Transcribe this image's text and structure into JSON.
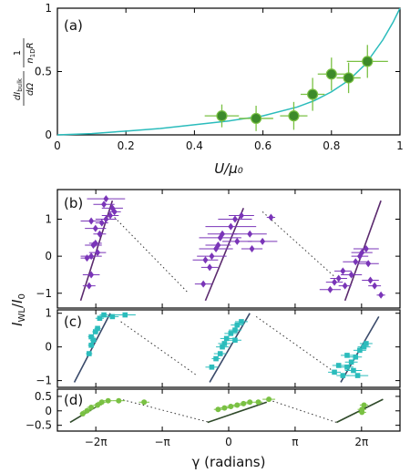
{
  "figure": {
    "background": "#ffffff"
  },
  "chart_data": [
    {
      "id": "a",
      "type": "scatter",
      "panel_label": "(a)",
      "xlabel": "U/μ₀",
      "ylabel_parts": {
        "frac1_num": "dI",
        "frac1_sub": "bulk",
        "frac1_den": "dΩ",
        "frac2_num": "1",
        "frac2_den": "n",
        "frac2_den_sub": "1D",
        "frac2_den_tail": "R"
      },
      "xlim": [
        0,
        1
      ],
      "ylim": [
        0,
        1
      ],
      "xticks": [
        0,
        0.2,
        0.4,
        0.6,
        0.8,
        1
      ],
      "xtick_labels": [
        "0",
        "0.2",
        "0.4",
        "0.6",
        "0.8",
        "1"
      ],
      "yticks": [
        0,
        0.5,
        1
      ],
      "ytick_labels": [
        "0",
        "0.5",
        "1"
      ],
      "point_color": "#3d8a2a",
      "errorbar_color": "#7ac143",
      "curve_color": "#2bbcbc",
      "curve": {
        "x": [
          0,
          0.1,
          0.2,
          0.3,
          0.4,
          0.5,
          0.6,
          0.7,
          0.75,
          0.8,
          0.85,
          0.9,
          0.95,
          0.98,
          1.0
        ],
        "y": [
          0,
          0.01,
          0.03,
          0.05,
          0.08,
          0.11,
          0.15,
          0.22,
          0.27,
          0.34,
          0.43,
          0.56,
          0.75,
          0.89,
          1.0
        ]
      },
      "points": [
        {
          "x": 0.48,
          "y": 0.15,
          "xerr": 0.05,
          "yerr": 0.09
        },
        {
          "x": 0.58,
          "y": 0.13,
          "xerr": 0.05,
          "yerr": 0.1
        },
        {
          "x": 0.69,
          "y": 0.15,
          "xerr": 0.04,
          "yerr": 0.11
        },
        {
          "x": 0.745,
          "y": 0.32,
          "xerr": 0.035,
          "yerr": 0.13
        },
        {
          "x": 0.8,
          "y": 0.48,
          "xerr": 0.04,
          "yerr": 0.13
        },
        {
          "x": 0.85,
          "y": 0.45,
          "xerr": 0.035,
          "yerr": 0.12
        },
        {
          "x": 0.905,
          "y": 0.58,
          "xerr": 0.06,
          "yerr": 0.13
        }
      ]
    },
    {
      "id": "b",
      "type": "scatter",
      "panel_label": "(b)",
      "xlim": [
        -8.1,
        8.1
      ],
      "ylim": [
        -1.4,
        1.8
      ],
      "yticks": [
        -1,
        0,
        1
      ],
      "ytick_labels": [
        "−1",
        "0",
        "1"
      ],
      "point_color": "#7a35b8",
      "line_color": "#5b2a6e",
      "points": [
        {
          "x": -6.6,
          "y": -0.8,
          "xerr": 0.3
        },
        {
          "x": -6.5,
          "y": -0.5,
          "xerr": 0.4
        },
        {
          "x": -6.7,
          "y": -0.05,
          "xerr": 0.3
        },
        {
          "x": -6.5,
          "y": 0.0,
          "xerr": 0.5
        },
        {
          "x": -6.4,
          "y": 0.3,
          "xerr": 0.4
        },
        {
          "x": -6.3,
          "y": 0.35,
          "xerr": 0.3
        },
        {
          "x": -6.2,
          "y": 0.1,
          "xerr": 0.4
        },
        {
          "x": -6.1,
          "y": 0.6,
          "xerr": 0.3
        },
        {
          "x": -6.3,
          "y": 0.75,
          "xerr": 0.5
        },
        {
          "x": -6.5,
          "y": 0.95,
          "xerr": 0.5
        },
        {
          "x": -6.0,
          "y": 0.9,
          "xerr": 0.3
        },
        {
          "x": -5.8,
          "y": 1.0,
          "xerr": 0.5
        },
        {
          "x": -5.6,
          "y": 1.1,
          "xerr": 0.4
        },
        {
          "x": -5.5,
          "y": 1.3,
          "xerr": 0.5
        },
        {
          "x": -5.4,
          "y": 1.2,
          "xerr": 0.3
        },
        {
          "x": -5.8,
          "y": 1.55,
          "xerr": 0.9
        },
        {
          "x": -5.9,
          "y": 1.4,
          "xerr": 0.5
        },
        {
          "x": -1.2,
          "y": -0.75,
          "xerr": 0.4
        },
        {
          "x": -1.1,
          "y": -0.1,
          "xerr": 0.6
        },
        {
          "x": -0.9,
          "y": -0.3,
          "xerr": 0.4
        },
        {
          "x": -0.8,
          "y": 0.0,
          "xerr": 0.7
        },
        {
          "x": -0.6,
          "y": 0.2,
          "xerr": 0.8
        },
        {
          "x": -0.5,
          "y": 0.3,
          "xerr": 0.6
        },
        {
          "x": -0.4,
          "y": 0.5,
          "xerr": 1.0
        },
        {
          "x": -0.3,
          "y": 0.6,
          "xerr": 0.7
        },
        {
          "x": 0.1,
          "y": 0.8,
          "xerr": 1.2
        },
        {
          "x": 0.3,
          "y": 1.0,
          "xerr": 0.8
        },
        {
          "x": 0.6,
          "y": 1.1,
          "xerr": 0.6
        },
        {
          "x": 0.4,
          "y": 0.4,
          "xerr": 0.7
        },
        {
          "x": 1.0,
          "y": 0.6,
          "xerr": 0.8
        },
        {
          "x": 1.6,
          "y": 0.4,
          "xerr": 0.7
        },
        {
          "x": 2.0,
          "y": 1.05,
          "xerr": 0.2
        },
        {
          "x": 1.1,
          "y": 0.2,
          "xerr": 0.5
        },
        {
          "x": 4.8,
          "y": -0.9,
          "xerr": 0.5
        },
        {
          "x": 5.0,
          "y": -0.7,
          "xerr": 0.4
        },
        {
          "x": 5.2,
          "y": -0.6,
          "xerr": 0.4
        },
        {
          "x": 5.4,
          "y": -0.4,
          "xerr": 0.4
        },
        {
          "x": 5.5,
          "y": -0.8,
          "xerr": 0.3
        },
        {
          "x": 5.8,
          "y": -0.5,
          "xerr": 0.5
        },
        {
          "x": 6.0,
          "y": -0.15,
          "xerr": 0.6
        },
        {
          "x": 6.2,
          "y": 0.0,
          "xerr": 0.4
        },
        {
          "x": 6.3,
          "y": 0.1,
          "xerr": 0.5
        },
        {
          "x": 6.5,
          "y": 0.2,
          "xerr": 0.6
        },
        {
          "x": 6.6,
          "y": -0.2,
          "xerr": 0.5
        },
        {
          "x": 6.7,
          "y": -0.65,
          "xerr": 0.4
        },
        {
          "x": 6.9,
          "y": -0.8,
          "xerr": 0.3
        },
        {
          "x": 7.2,
          "y": -1.05,
          "xerr": 0.2
        }
      ],
      "lines": [
        {
          "x": [
            -7.0,
            -5.5
          ],
          "y": [
            -1.2,
            1.5
          ]
        },
        {
          "x": [
            -1.1,
            0.7
          ],
          "y": [
            -1.2,
            1.3
          ]
        },
        {
          "x": [
            5.5,
            7.2
          ],
          "y": [
            -1.2,
            1.5
          ]
        }
      ],
      "dotted": [
        {
          "x": [
            -5.4,
            -1.9
          ],
          "y": [
            1.05,
            -1.0
          ]
        },
        {
          "x": [
            1.6,
            5.0
          ],
          "y": [
            1.2,
            -0.55
          ]
        }
      ]
    },
    {
      "id": "c",
      "type": "scatter",
      "panel_label": "(c)",
      "xlim": [
        -8.1,
        8.1
      ],
      "ylim": [
        -1.2,
        1.1
      ],
      "yticks": [
        -1,
        0,
        1
      ],
      "ytick_labels": [
        "−1",
        "0",
        "1"
      ],
      "point_color": "#2bbcbc",
      "line_color": "#3a4a6a",
      "points": [
        {
          "x": -6.6,
          "y": -0.2,
          "xerr": 0.15
        },
        {
          "x": -6.5,
          "y": 0.05,
          "xerr": 0.15
        },
        {
          "x": -6.4,
          "y": 0.2,
          "xerr": 0.15
        },
        {
          "x": -6.5,
          "y": 0.3,
          "xerr": 0.15
        },
        {
          "x": -6.3,
          "y": 0.45,
          "xerr": 0.15
        },
        {
          "x": -6.2,
          "y": 0.55,
          "xerr": 0.15
        },
        {
          "x": -6.1,
          "y": 0.85,
          "xerr": 0.2
        },
        {
          "x": -5.9,
          "y": 0.95,
          "xerr": 0.2
        },
        {
          "x": -5.5,
          "y": 0.9,
          "xerr": 0.3
        },
        {
          "x": -4.9,
          "y": 0.95,
          "xerr": 0.5
        },
        {
          "x": -0.8,
          "y": -0.6,
          "xerr": 0.3
        },
        {
          "x": -0.6,
          "y": -0.35,
          "xerr": 0.2
        },
        {
          "x": -0.4,
          "y": -0.2,
          "xerr": 0.3
        },
        {
          "x": -0.3,
          "y": 0.0,
          "xerr": 0.3
        },
        {
          "x": -0.2,
          "y": 0.1,
          "xerr": 0.3
        },
        {
          "x": -0.1,
          "y": 0.25,
          "xerr": 0.3
        },
        {
          "x": 0.1,
          "y": 0.4,
          "xerr": 0.3
        },
        {
          "x": 0.3,
          "y": 0.5,
          "xerr": 0.3
        },
        {
          "x": 0.4,
          "y": 0.65,
          "xerr": 0.3
        },
        {
          "x": 0.6,
          "y": 0.75,
          "xerr": 0.3
        },
        {
          "x": 0.3,
          "y": 0.2,
          "xerr": 0.3
        },
        {
          "x": 5.0,
          "y": -0.75,
          "xerr": 0.3
        },
        {
          "x": 5.4,
          "y": -0.85,
          "xerr": 0.3
        },
        {
          "x": 5.6,
          "y": -0.6,
          "xerr": 0.3
        },
        {
          "x": 5.8,
          "y": -0.45,
          "xerr": 0.3
        },
        {
          "x": 6.0,
          "y": -0.3,
          "xerr": 0.3
        },
        {
          "x": 6.2,
          "y": -0.1,
          "xerr": 0.3
        },
        {
          "x": 6.4,
          "y": 0.0,
          "xerr": 0.3
        },
        {
          "x": 6.5,
          "y": 0.1,
          "xerr": 0.3
        },
        {
          "x": 6.1,
          "y": -0.85,
          "xerr": 0.5
        },
        {
          "x": 5.9,
          "y": -0.7,
          "xerr": 0.4
        },
        {
          "x": 5.2,
          "y": -0.55,
          "xerr": 0.3
        },
        {
          "x": 5.6,
          "y": -0.25,
          "xerr": 0.3
        }
      ],
      "lines": [
        {
          "x": [
            -7.3,
            -5.6
          ],
          "y": [
            -1.05,
            1.0
          ]
        },
        {
          "x": [
            -0.9,
            1.0
          ],
          "y": [
            -1.05,
            1.0
          ]
        },
        {
          "x": [
            5.3,
            7.1
          ],
          "y": [
            -1.05,
            0.9
          ]
        }
      ],
      "dotted": [
        {
          "x": [
            -5.1,
            -1.5
          ],
          "y": [
            0.75,
            -0.85
          ]
        },
        {
          "x": [
            1.3,
            4.9
          ],
          "y": [
            0.9,
            -0.7
          ]
        }
      ]
    },
    {
      "id": "d",
      "type": "scatter",
      "panel_label": "(d)",
      "xlabel": "γ (radians)",
      "xlim": [
        -8.1,
        8.1
      ],
      "ylim": [
        -0.7,
        0.75
      ],
      "xticks": [
        -6.2832,
        -3.1416,
        0,
        3.1416,
        6.2832
      ],
      "xtick_labels": [
        "−2π",
        "−π",
        "0",
        "π",
        "2π"
      ],
      "yticks": [
        -0.5,
        0,
        0.5
      ],
      "ytick_labels": [
        "−0.5",
        "0",
        "0.5"
      ],
      "point_color": "#7ac143",
      "line_color": "#2f4a2a",
      "points": [
        {
          "x": -6.9,
          "y": -0.1,
          "xerr": 0.15
        },
        {
          "x": -6.7,
          "y": 0.0,
          "xerr": 0.2
        },
        {
          "x": -6.5,
          "y": 0.12,
          "xerr": 0.2
        },
        {
          "x": -6.2,
          "y": 0.2,
          "xerr": 0.2
        },
        {
          "x": -6.0,
          "y": 0.3,
          "xerr": 0.2
        },
        {
          "x": -5.7,
          "y": 0.35,
          "xerr": 0.2
        },
        {
          "x": -5.2,
          "y": 0.35,
          "xerr": 0.3
        },
        {
          "x": -4.0,
          "y": 0.3,
          "xerr": 0.25
        },
        {
          "x": -0.5,
          "y": 0.05,
          "xerr": 0.2
        },
        {
          "x": -0.2,
          "y": 0.1,
          "xerr": 0.2
        },
        {
          "x": 0.1,
          "y": 0.15,
          "xerr": 0.2
        },
        {
          "x": 0.4,
          "y": 0.2,
          "xerr": 0.2
        },
        {
          "x": 0.7,
          "y": 0.25,
          "xerr": 0.2
        },
        {
          "x": 1.0,
          "y": 0.3,
          "xerr": 0.2
        },
        {
          "x": 1.4,
          "y": 0.3,
          "xerr": 0.2
        },
        {
          "x": 1.9,
          "y": 0.4,
          "xerr": 0.3
        },
        {
          "x": 6.3,
          "y": -0.05,
          "xerr": 0.2
        },
        {
          "x": 6.3,
          "y": 0.05,
          "xerr": 0.2
        },
        {
          "x": 6.4,
          "y": 0.2,
          "xerr": 0.2
        }
      ],
      "lines": [
        {
          "x": [
            -7.5,
            -5.9
          ],
          "y": [
            -0.4,
            0.3
          ]
        },
        {
          "x": [
            -1.0,
            1.8
          ],
          "y": [
            -0.4,
            0.3
          ]
        },
        {
          "x": [
            5.1,
            7.3
          ],
          "y": [
            -0.4,
            0.4
          ]
        }
      ],
      "dotted": [
        {
          "x": [
            -5.0,
            -0.9
          ],
          "y": [
            0.38,
            -0.4
          ]
        },
        {
          "x": [
            1.9,
            5.1
          ],
          "y": [
            0.38,
            -0.4
          ]
        }
      ]
    }
  ],
  "shared_ylabel_bcd": {
    "main": "I",
    "sub1": "WL",
    "slash": "/",
    "main2": "I",
    "sub2": "0"
  }
}
